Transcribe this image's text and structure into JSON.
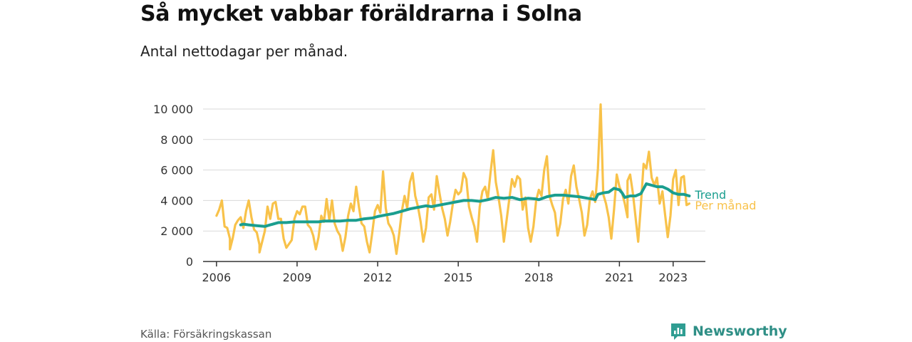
{
  "title": "Så mycket vabbar föräldrarna i Solna",
  "subtitle": "Antal nettodagar per månad.",
  "source": "Källa: Försäkringskassan",
  "brand": {
    "name": "Newsworthy",
    "icon": "newsworthy-logo-icon",
    "color": "#2f9d92"
  },
  "colors": {
    "trend": "#1a9e8f",
    "monthly": "#f8c24a",
    "grid": "#d9d9d9",
    "axis": "#333333"
  },
  "chart_data": {
    "type": "line",
    "xlim": [
      2005.5,
      2024.2
    ],
    "ylim": [
      0,
      10000
    ],
    "yticks": [
      0,
      2000,
      4000,
      6000,
      8000,
      10000
    ],
    "ytick_labels": [
      "0",
      "2 000",
      "4 000",
      "6 000",
      "8 000",
      "10 000"
    ],
    "xticks": [
      2006,
      2009,
      2012,
      2015,
      2018,
      2021,
      2023
    ],
    "xtick_labels": [
      "2006",
      "2009",
      "2012",
      "2015",
      "2018",
      "2021",
      "2023"
    ],
    "grid": true,
    "series": [
      {
        "name": "Per månad",
        "color": "#f8c24a",
        "points": [
          [
            2006.0,
            3000
          ],
          [
            2006.1,
            3400
          ],
          [
            2006.2,
            4000
          ],
          [
            2006.3,
            2300
          ],
          [
            2006.4,
            2200
          ],
          [
            2006.5,
            1500
          ],
          [
            2006.5,
            800
          ],
          [
            2006.6,
            1500
          ],
          [
            2006.7,
            2400
          ],
          [
            2006.8,
            2700
          ],
          [
            2006.9,
            2900
          ],
          [
            2007.0,
            2200
          ],
          [
            2007.1,
            3300
          ],
          [
            2007.2,
            4000
          ],
          [
            2007.3,
            2900
          ],
          [
            2007.4,
            2100
          ],
          [
            2007.5,
            1900
          ],
          [
            2007.6,
            1100
          ],
          [
            2007.6,
            600
          ],
          [
            2007.8,
            2000
          ],
          [
            2007.9,
            3600
          ],
          [
            2008.0,
            2800
          ],
          [
            2008.1,
            3800
          ],
          [
            2008.2,
            3900
          ],
          [
            2008.3,
            2800
          ],
          [
            2008.4,
            2800
          ],
          [
            2008.5,
            1500
          ],
          [
            2008.6,
            900
          ],
          [
            2008.8,
            1400
          ],
          [
            2008.9,
            2800
          ],
          [
            2009.0,
            3300
          ],
          [
            2009.1,
            3100
          ],
          [
            2009.2,
            3600
          ],
          [
            2009.3,
            3600
          ],
          [
            2009.4,
            2400
          ],
          [
            2009.5,
            2200
          ],
          [
            2009.6,
            1700
          ],
          [
            2009.7,
            800
          ],
          [
            2009.8,
            1600
          ],
          [
            2009.9,
            3000
          ],
          [
            2010.0,
            2600
          ],
          [
            2010.1,
            4100
          ],
          [
            2010.2,
            2700
          ],
          [
            2010.3,
            4000
          ],
          [
            2010.4,
            2500
          ],
          [
            2010.5,
            2000
          ],
          [
            2010.6,
            1700
          ],
          [
            2010.7,
            700
          ],
          [
            2010.8,
            1600
          ],
          [
            2010.9,
            3000
          ],
          [
            2011.0,
            3800
          ],
          [
            2011.1,
            3300
          ],
          [
            2011.2,
            4900
          ],
          [
            2011.3,
            3600
          ],
          [
            2011.4,
            2500
          ],
          [
            2011.5,
            2300
          ],
          [
            2011.6,
            1300
          ],
          [
            2011.7,
            600
          ],
          [
            2011.8,
            1900
          ],
          [
            2011.9,
            3300
          ],
          [
            2012.0,
            3700
          ],
          [
            2012.1,
            3200
          ],
          [
            2012.2,
            5900
          ],
          [
            2012.3,
            3500
          ],
          [
            2012.4,
            2500
          ],
          [
            2012.5,
            2200
          ],
          [
            2012.6,
            1700
          ],
          [
            2012.7,
            500
          ],
          [
            2012.8,
            1800
          ],
          [
            2012.9,
            3300
          ],
          [
            2013.0,
            4300
          ],
          [
            2013.1,
            3500
          ],
          [
            2013.2,
            5200
          ],
          [
            2013.3,
            5800
          ],
          [
            2013.4,
            4300
          ],
          [
            2013.5,
            3600
          ],
          [
            2013.6,
            2600
          ],
          [
            2013.7,
            1300
          ],
          [
            2013.8,
            2200
          ],
          [
            2013.9,
            4200
          ],
          [
            2014.0,
            4400
          ],
          [
            2014.1,
            3400
          ],
          [
            2014.2,
            5600
          ],
          [
            2014.3,
            4500
          ],
          [
            2014.4,
            3500
          ],
          [
            2014.5,
            2800
          ],
          [
            2014.6,
            1700
          ],
          [
            2014.7,
            2600
          ],
          [
            2014.8,
            3800
          ],
          [
            2014.9,
            4700
          ],
          [
            2015.0,
            4400
          ],
          [
            2015.1,
            4600
          ],
          [
            2015.2,
            5800
          ],
          [
            2015.3,
            5400
          ],
          [
            2015.4,
            3600
          ],
          [
            2015.5,
            2900
          ],
          [
            2015.6,
            2300
          ],
          [
            2015.7,
            1300
          ],
          [
            2015.8,
            3600
          ],
          [
            2015.9,
            4600
          ],
          [
            2016.0,
            4900
          ],
          [
            2016.1,
            4100
          ],
          [
            2016.2,
            5800
          ],
          [
            2016.3,
            7300
          ],
          [
            2016.4,
            5200
          ],
          [
            2016.5,
            4200
          ],
          [
            2016.6,
            3000
          ],
          [
            2016.7,
            1300
          ],
          [
            2016.8,
            2700
          ],
          [
            2016.9,
            4100
          ],
          [
            2017.0,
            5400
          ],
          [
            2017.1,
            4900
          ],
          [
            2017.2,
            5600
          ],
          [
            2017.3,
            5400
          ],
          [
            2017.4,
            3400
          ],
          [
            2017.5,
            4200
          ],
          [
            2017.6,
            2200
          ],
          [
            2017.7,
            1300
          ],
          [
            2017.8,
            2300
          ],
          [
            2017.9,
            4000
          ],
          [
            2018.0,
            4700
          ],
          [
            2018.1,
            4300
          ],
          [
            2018.2,
            6000
          ],
          [
            2018.3,
            6900
          ],
          [
            2018.4,
            4300
          ],
          [
            2018.5,
            3700
          ],
          [
            2018.6,
            3200
          ],
          [
            2018.7,
            1700
          ],
          [
            2018.8,
            2500
          ],
          [
            2018.9,
            4100
          ],
          [
            2019.0,
            4700
          ],
          [
            2019.1,
            3800
          ],
          [
            2019.2,
            5600
          ],
          [
            2019.3,
            6300
          ],
          [
            2019.4,
            4900
          ],
          [
            2019.5,
            4100
          ],
          [
            2019.6,
            3200
          ],
          [
            2019.7,
            1700
          ],
          [
            2019.8,
            2400
          ],
          [
            2019.9,
            4100
          ],
          [
            2020.0,
            4600
          ],
          [
            2020.1,
            3900
          ],
          [
            2020.2,
            6100
          ],
          [
            2020.3,
            10300
          ],
          [
            2020.4,
            4400
          ],
          [
            2020.5,
            3800
          ],
          [
            2020.6,
            2900
          ],
          [
            2020.7,
            1500
          ],
          [
            2020.8,
            3400
          ],
          [
            2020.9,
            5700
          ],
          [
            2021.0,
            4900
          ],
          [
            2021.1,
            4500
          ],
          [
            2021.2,
            3800
          ],
          [
            2021.3,
            2900
          ],
          [
            2021.3,
            5300
          ],
          [
            2021.4,
            5700
          ],
          [
            2021.5,
            4500
          ],
          [
            2021.6,
            2900
          ],
          [
            2021.7,
            1300
          ],
          [
            2021.8,
            3700
          ],
          [
            2021.9,
            6400
          ],
          [
            2022.0,
            6100
          ],
          [
            2022.1,
            7200
          ],
          [
            2022.2,
            5500
          ],
          [
            2022.3,
            5000
          ],
          [
            2022.4,
            5500
          ],
          [
            2022.5,
            3800
          ],
          [
            2022.6,
            4600
          ],
          [
            2022.7,
            3100
          ],
          [
            2022.8,
            1600
          ],
          [
            2022.9,
            3000
          ],
          [
            2023.0,
            5400
          ],
          [
            2023.1,
            6000
          ],
          [
            2023.2,
            3700
          ],
          [
            2023.3,
            5500
          ],
          [
            2023.4,
            5600
          ],
          [
            2023.5,
            3700
          ],
          [
            2023.6,
            3800
          ]
        ]
      },
      {
        "name": "Trend",
        "color": "#1a9e8f",
        "points": [
          [
            2006.9,
            2400
          ],
          [
            2007.0,
            2450
          ],
          [
            2007.2,
            2400
          ],
          [
            2007.5,
            2350
          ],
          [
            2007.8,
            2300
          ],
          [
            2008.0,
            2400
          ],
          [
            2008.3,
            2550
          ],
          [
            2008.6,
            2550
          ],
          [
            2008.9,
            2600
          ],
          [
            2009.2,
            2600
          ],
          [
            2009.5,
            2600
          ],
          [
            2009.8,
            2600
          ],
          [
            2010.0,
            2650
          ],
          [
            2010.3,
            2650
          ],
          [
            2010.6,
            2650
          ],
          [
            2010.9,
            2700
          ],
          [
            2011.2,
            2700
          ],
          [
            2011.5,
            2800
          ],
          [
            2011.8,
            2850
          ],
          [
            2012.0,
            2950
          ],
          [
            2012.3,
            3050
          ],
          [
            2012.6,
            3150
          ],
          [
            2012.9,
            3300
          ],
          [
            2013.2,
            3450
          ],
          [
            2013.5,
            3550
          ],
          [
            2013.8,
            3650
          ],
          [
            2014.0,
            3600
          ],
          [
            2014.3,
            3700
          ],
          [
            2014.6,
            3800
          ],
          [
            2014.9,
            3900
          ],
          [
            2015.2,
            4000
          ],
          [
            2015.5,
            4000
          ],
          [
            2015.8,
            3950
          ],
          [
            2016.1,
            4050
          ],
          [
            2016.4,
            4200
          ],
          [
            2016.7,
            4150
          ],
          [
            2017.0,
            4200
          ],
          [
            2017.3,
            4050
          ],
          [
            2017.6,
            4150
          ],
          [
            2017.9,
            4100
          ],
          [
            2018.0,
            4050
          ],
          [
            2018.3,
            4250
          ],
          [
            2018.6,
            4350
          ],
          [
            2018.9,
            4350
          ],
          [
            2019.2,
            4300
          ],
          [
            2019.5,
            4250
          ],
          [
            2019.8,
            4150
          ],
          [
            2020.0,
            4100
          ],
          [
            2020.1,
            4050
          ],
          [
            2020.2,
            4400
          ],
          [
            2020.4,
            4500
          ],
          [
            2020.6,
            4550
          ],
          [
            2020.8,
            4800
          ],
          [
            2021.0,
            4700
          ],
          [
            2021.1,
            4500
          ],
          [
            2021.2,
            4200
          ],
          [
            2021.4,
            4300
          ],
          [
            2021.6,
            4300
          ],
          [
            2021.8,
            4450
          ],
          [
            2022.0,
            5100
          ],
          [
            2022.2,
            5000
          ],
          [
            2022.4,
            4900
          ],
          [
            2022.6,
            4900
          ],
          [
            2022.8,
            4750
          ],
          [
            2023.0,
            4500
          ],
          [
            2023.2,
            4400
          ],
          [
            2023.4,
            4400
          ],
          [
            2023.6,
            4300
          ]
        ]
      }
    ]
  }
}
